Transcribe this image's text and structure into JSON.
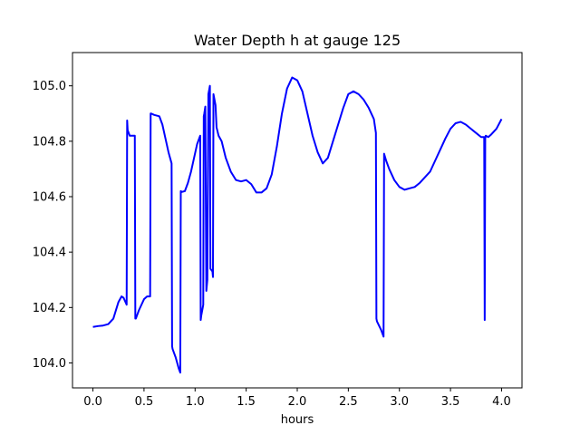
{
  "chart_data": {
    "type": "line",
    "title": "Water Depth h at gauge 125",
    "xlabel": "hours",
    "ylabel": "",
    "xlim": [
      -0.2,
      4.2
    ],
    "ylim": [
      103.91,
      105.12
    ],
    "xticks": [
      0.0,
      0.5,
      1.0,
      1.5,
      2.0,
      2.5,
      3.0,
      3.5,
      4.0
    ],
    "xtick_labels": [
      "0.0",
      "0.5",
      "1.0",
      "1.5",
      "2.0",
      "2.5",
      "3.0",
      "3.5",
      "4.0"
    ],
    "yticks": [
      104.0,
      104.2,
      104.4,
      104.6,
      104.8,
      105.0
    ],
    "ytick_labels": [
      "104.0",
      "104.2",
      "104.4",
      "104.6",
      "104.8",
      "105.0"
    ],
    "grid": false,
    "legend": false,
    "series": [
      {
        "color": "#0000ff",
        "x": [
          0.0,
          0.05,
          0.1,
          0.15,
          0.2,
          0.25,
          0.28,
          0.3,
          0.33,
          0.335,
          0.34,
          0.36,
          0.38,
          0.41,
          0.415,
          0.42,
          0.45,
          0.5,
          0.53,
          0.56,
          0.565,
          0.57,
          0.6,
          0.65,
          0.68,
          0.71,
          0.74,
          0.77,
          0.775,
          0.78,
          0.81,
          0.84,
          0.855,
          0.86,
          0.87,
          0.9,
          0.93,
          0.96,
          0.99,
          1.02,
          1.05,
          1.055,
          1.06,
          1.08,
          1.085,
          1.09,
          1.1,
          1.11,
          1.12,
          1.13,
          1.14,
          1.145,
          1.15,
          1.17,
          1.175,
          1.18,
          1.2,
          1.205,
          1.21,
          1.23,
          1.26,
          1.3,
          1.35,
          1.4,
          1.45,
          1.5,
          1.55,
          1.6,
          1.65,
          1.7,
          1.75,
          1.8,
          1.85,
          1.9,
          1.95,
          2.0,
          2.05,
          2.1,
          2.15,
          2.2,
          2.25,
          2.3,
          2.35,
          2.4,
          2.45,
          2.5,
          2.55,
          2.6,
          2.65,
          2.7,
          2.75,
          2.77,
          2.775,
          2.78,
          2.82,
          2.845,
          2.85,
          2.87,
          2.9,
          2.95,
          3.0,
          3.05,
          3.1,
          3.15,
          3.2,
          3.25,
          3.3,
          3.35,
          3.4,
          3.45,
          3.5,
          3.55,
          3.6,
          3.65,
          3.7,
          3.75,
          3.8,
          3.83,
          3.835,
          3.84,
          3.845,
          3.87,
          3.9,
          3.95,
          4.0
        ],
        "values": [
          104.13,
          104.133,
          104.135,
          104.14,
          104.16,
          104.22,
          104.24,
          104.235,
          104.21,
          104.875,
          104.84,
          104.82,
          104.82,
          104.82,
          104.16,
          104.16,
          104.19,
          104.23,
          104.24,
          104.24,
          104.9,
          104.9,
          104.895,
          104.89,
          104.86,
          104.81,
          104.76,
          104.72,
          104.06,
          104.05,
          104.02,
          103.98,
          103.965,
          104.62,
          104.617,
          104.62,
          104.65,
          104.69,
          104.74,
          104.79,
          104.82,
          104.155,
          104.17,
          104.21,
          104.89,
          104.9,
          104.925,
          104.26,
          104.3,
          104.97,
          104.99,
          105.0,
          104.34,
          104.33,
          104.31,
          104.97,
          104.93,
          104.89,
          104.85,
          104.82,
          104.8,
          104.74,
          104.69,
          104.66,
          104.655,
          104.66,
          104.645,
          104.615,
          104.615,
          104.63,
          104.68,
          104.78,
          104.9,
          104.99,
          105.03,
          105.02,
          104.98,
          104.9,
          104.82,
          104.76,
          104.72,
          104.74,
          104.8,
          104.86,
          104.92,
          104.97,
          104.98,
          104.97,
          104.95,
          104.92,
          104.88,
          104.83,
          104.16,
          104.15,
          104.12,
          104.095,
          104.755,
          104.73,
          104.7,
          104.66,
          104.635,
          104.625,
          104.63,
          104.635,
          104.65,
          104.67,
          104.69,
          104.73,
          104.77,
          104.81,
          104.845,
          104.865,
          104.87,
          104.86,
          104.845,
          104.83,
          104.815,
          104.815,
          104.155,
          104.81,
          104.82,
          104.815,
          104.825,
          104.845,
          104.88
        ]
      }
    ]
  }
}
